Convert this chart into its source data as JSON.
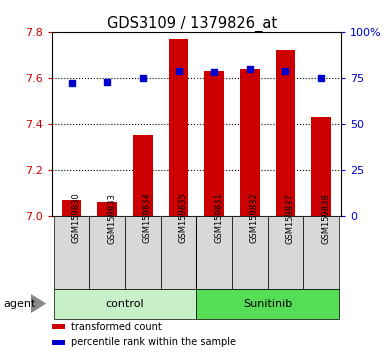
{
  "title": "GDS3109 / 1379826_at",
  "samples": [
    "GSM159830",
    "GSM159833",
    "GSM159834",
    "GSM159835",
    "GSM159831",
    "GSM159832",
    "GSM159837",
    "GSM159838"
  ],
  "red_values": [
    7.07,
    7.06,
    7.35,
    7.77,
    7.63,
    7.64,
    7.72,
    7.43
  ],
  "blue_values": [
    72,
    73,
    75,
    79,
    78,
    80,
    79,
    75
  ],
  "groups": [
    {
      "label": "control",
      "indices": [
        0,
        1,
        2,
        3
      ],
      "color": "#c8f0c8"
    },
    {
      "label": "Sunitinib",
      "indices": [
        4,
        5,
        6,
        7
      ],
      "color": "#55dd55"
    }
  ],
  "ylim_left": [
    7.0,
    7.8
  ],
  "ylim_right": [
    0,
    100
  ],
  "yticks_left": [
    7.0,
    7.2,
    7.4,
    7.6,
    7.8
  ],
  "yticks_right": [
    0,
    25,
    50,
    75,
    100
  ],
  "ytick_labels_right": [
    "0",
    "25",
    "50",
    "75",
    "100%"
  ],
  "bar_color": "#cc0000",
  "dot_color": "#0000cc",
  "bar_width": 0.55,
  "bar_bottom": 7.0,
  "bg_color": "#d8d8d8",
  "tick_label_color_left": "#cc0000",
  "tick_label_color_right": "#0000cc",
  "grid_yticks": [
    7.2,
    7.4,
    7.6
  ],
  "legend_items": [
    {
      "color": "#cc0000",
      "label": "transformed count"
    },
    {
      "color": "#0000cc",
      "label": "percentile rank within the sample"
    }
  ],
  "agent_label": "agent"
}
